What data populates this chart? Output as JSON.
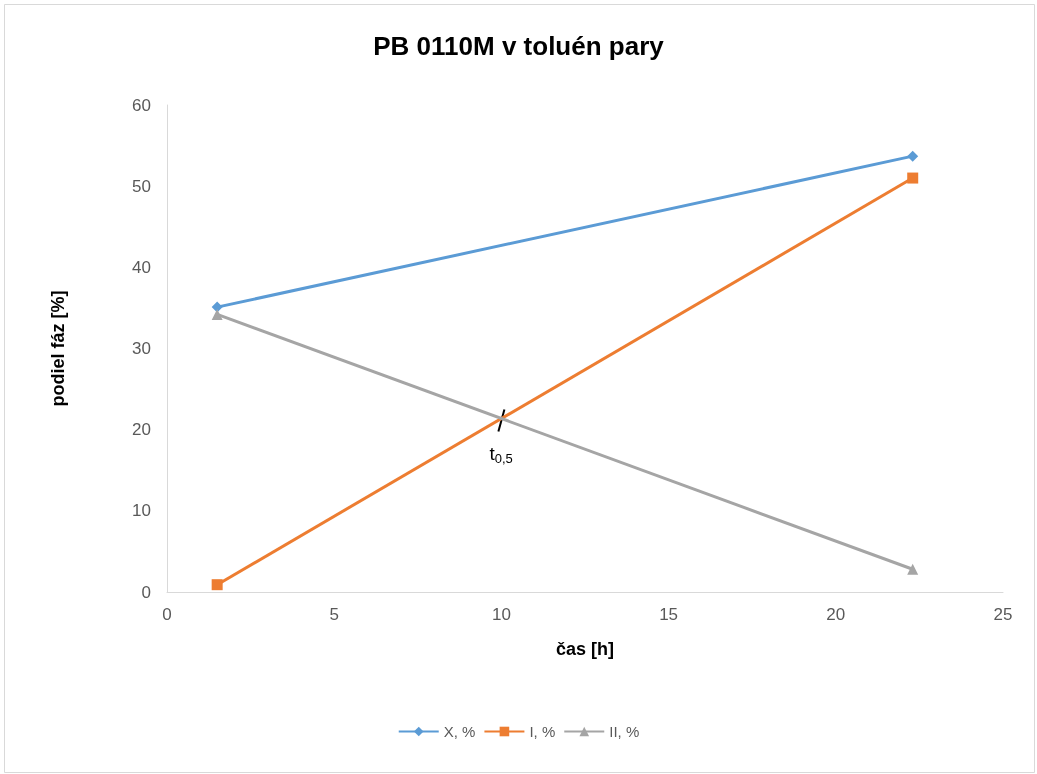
{
  "chart_data": {
    "type": "line",
    "title": "PB 0110M v toluén pary",
    "xlabel": "čas [h]",
    "ylabel": "podiel fáz [%]",
    "xlim": [
      0,
      25
    ],
    "xticks": [
      0,
      5,
      10,
      15,
      20,
      25
    ],
    "ylim": [
      0,
      60
    ],
    "yticks": [
      0,
      10,
      20,
      30,
      40,
      50,
      60
    ],
    "x": [
      1.5,
      22.3
    ],
    "series": [
      {
        "name": "X, %",
        "color": "#5b9bd5",
        "marker": "diamond",
        "values": [
          35.1,
          53.7
        ]
      },
      {
        "name": "I, %",
        "color": "#ed7d31",
        "marker": "square",
        "values": [
          0.9,
          51.0
        ]
      },
      {
        "name": "II, %",
        "color": "#a5a5a5",
        "marker": "triangle",
        "values": [
          34.2,
          2.8
        ]
      }
    ],
    "annotations": [
      {
        "text": "t$_{0,5}$",
        "x": 10,
        "y": 21
      }
    ],
    "grid": false,
    "legend": "bottom"
  }
}
